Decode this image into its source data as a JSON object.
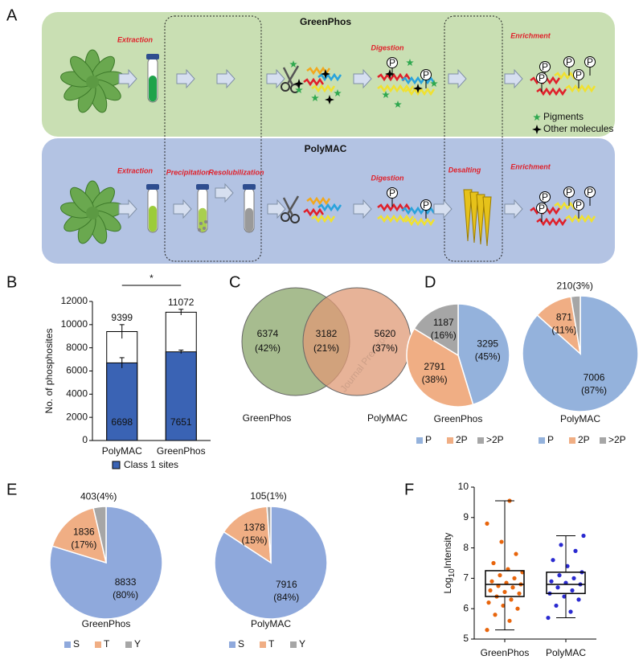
{
  "panel_labels": [
    "A",
    "B",
    "C",
    "D",
    "E",
    "F"
  ],
  "panel_a": {
    "rows": [
      {
        "title": "GreenPhos",
        "steps": [
          "Extraction",
          "Digestion",
          "Enrichment"
        ]
      },
      {
        "title": "PolyMAC",
        "steps": [
          "Extraction",
          "Precipitation",
          "Resolubilization",
          "Digestion",
          "Desalting",
          "Enrichment"
        ]
      }
    ],
    "phospho_label": "P",
    "legend": [
      "Pigments",
      "Other molecules"
    ]
  },
  "watermark": "Journal Pre-proof",
  "chart_data": [
    {
      "type": "bar",
      "ylabel": "No. of phosphosites",
      "categories": [
        "PolyMAC",
        "GreenPhos"
      ],
      "ylim": [
        0,
        12000
      ],
      "yticks": [
        0,
        2000,
        4000,
        6000,
        8000,
        10000,
        12000
      ],
      "totals": {
        "values": [
          9399,
          11072
        ],
        "errors": [
          600,
          250
        ],
        "color": "#ffffff"
      },
      "series": [
        {
          "name": "Class 1 sites",
          "color": "#3a63b4",
          "values": [
            6698,
            7651
          ],
          "errors": [
            450,
            150
          ]
        }
      ],
      "significance": "*"
    },
    {
      "type": "venn",
      "sets": [
        "GreenPhos",
        "PolyMAC"
      ],
      "colors": [
        "#8aa66a",
        "#df9a76"
      ],
      "values": [
        6374,
        3182,
        5620
      ],
      "percents": [
        42,
        21,
        37
      ],
      "percent_labels": [
        "(42%)",
        "(21%)",
        "(37%)"
      ]
    },
    {
      "type": "pie",
      "title": "GreenPhos",
      "categories": [
        "P",
        "2P",
        ">2P"
      ],
      "colors": [
        "#94b2dc",
        "#f0ae84",
        "#a6a6a6"
      ],
      "values": [
        3295,
        2791,
        1187
      ],
      "percents": [
        45,
        38,
        16
      ],
      "percent_labels": [
        "(45%)",
        "(38%)",
        "(16%)"
      ]
    },
    {
      "type": "pie",
      "title": "PolyMAC",
      "categories": [
        "P",
        "2P",
        ">2P"
      ],
      "colors": [
        "#94b2dc",
        "#f0ae84",
        "#a6a6a6"
      ],
      "values": [
        7006,
        871,
        210
      ],
      "percents": [
        87,
        11,
        3
      ],
      "percent_labels": [
        "(87%)",
        "(11%)",
        "(3%)"
      ]
    },
    {
      "type": "pie",
      "title": "GreenPhos",
      "categories": [
        "S",
        "T",
        "Y"
      ],
      "colors": [
        "#8fa9dc",
        "#f0ae84",
        "#a6a6a6"
      ],
      "values": [
        8833,
        1836,
        403
      ],
      "percents": [
        80,
        17,
        4
      ],
      "percent_labels": [
        "(80%)",
        "(17%)",
        "(4%)"
      ]
    },
    {
      "type": "pie",
      "title": "PolyMAC",
      "categories": [
        "S",
        "T",
        "Y"
      ],
      "colors": [
        "#8fa9dc",
        "#f0ae84",
        "#a6a6a6"
      ],
      "values": [
        7916,
        1378,
        105
      ],
      "percents": [
        84,
        15,
        1
      ],
      "percent_labels": [
        "(84%)",
        "(15%)",
        "(1%)"
      ]
    },
    {
      "type": "box",
      "ylabel": [
        "Log",
        "10",
        "Intensity"
      ],
      "categories": [
        "GreenPhos",
        "PolyMAC"
      ],
      "colors": [
        "#e8650c",
        "#2a2ad0"
      ],
      "ylim": [
        5,
        10
      ],
      "yticks": [
        5,
        6,
        7,
        8,
        9,
        10
      ],
      "min": [
        5.3,
        5.7
      ],
      "q1": [
        6.4,
        6.5
      ],
      "median": [
        6.8,
        6.8
      ],
      "q3": [
        7.25,
        7.2
      ],
      "max": [
        9.55,
        8.4
      ],
      "points": [
        [
          5.3,
          5.6,
          5.8,
          6.0,
          6.1,
          6.2,
          6.3,
          6.4,
          6.5,
          6.55,
          6.6,
          6.7,
          6.75,
          6.8,
          6.85,
          6.9,
          7.0,
          7.1,
          7.2,
          7.3,
          7.5,
          7.8,
          8.2,
          8.8,
          9.55
        ],
        [
          5.7,
          5.9,
          6.1,
          6.3,
          6.4,
          6.5,
          6.6,
          6.7,
          6.8,
          6.85,
          6.9,
          7.0,
          7.1,
          7.2,
          7.4,
          7.6,
          7.9,
          8.1,
          8.4
        ]
      ]
    }
  ]
}
